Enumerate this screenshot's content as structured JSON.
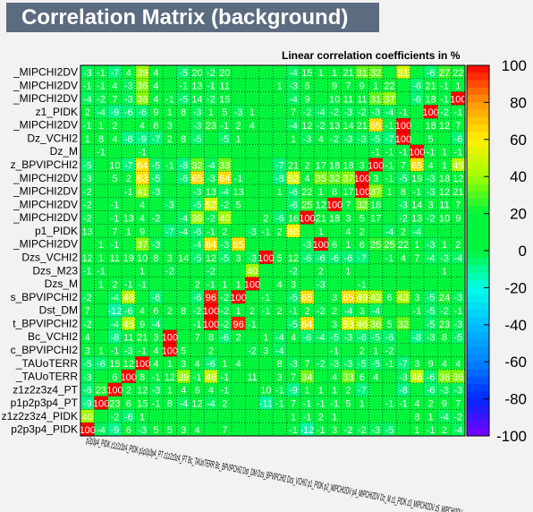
{
  "chart_data": {
    "type": "heatmap",
    "title": "Correlation Matrix (background)",
    "subtitle": "Linear correlation coefficients in %",
    "zlim": [
      -100,
      100
    ],
    "colorbar_ticks": [
      100,
      80,
      60,
      40,
      20,
      0,
      -20,
      -40,
      -60,
      -80,
      -100
    ],
    "y_labels": [
      "_MIPCHI2DV",
      "_MIPCHI2DV",
      "_MIPCHI2DV",
      "z1_PIDK",
      "_MIPCHI2DV",
      "Dz_VCHI2",
      "Dz_M",
      "z_BPVIPCHI2",
      "_MIPCHI2DV",
      "_MIPCHI2DV",
      "_MIPCHI2DV",
      "_MIPCHI2DV",
      "p1_PIDK",
      "_MIPCHI2DV",
      "Dzs_VCHI2",
      "Dzs_M23",
      "Dzs_M",
      "s_BPVIPCHI2",
      "Dst_DM",
      "t_BPVIPCHI2",
      "Bc_VCHI2",
      "c_BPVIPCHI2",
      "_TAUoTERR",
      "_TAUoTERR",
      "z1z2z3z4_PT",
      "p1p2p3p4_PT",
      "z1z2z3z4_PIDK",
      "p2p3p4_PIDK"
    ],
    "x_labels": [
      "p2p3p4_PIDK",
      "z1z2z3z4_PIDK",
      "p1p2p3p4_PT",
      "z1z2z3z4_PT",
      "Bc_TAUoTERR",
      "Bc_TAUoTERR",
      "Bc_BPVIPCHI2",
      "Bc_VCHI2",
      "Dst_BPVIPCHI2",
      "Dst_DM",
      "Dzs_BPVIPCHI2",
      "Dzs_M",
      "Dzs_M23",
      "Dzs_VCHI2",
      "p1_MIPCHI2DV",
      "p1_PIDK",
      "p2_MIPCHI2DV",
      "p3_MIPCHI2DV",
      "p4_MIPCHI2DV",
      "Dz_BPVIPCHI2",
      "Dz_M",
      "Dz_VCHI2",
      "z1_MIPCHI2DV",
      "z1_PIDK",
      "z2_MIPCHI2DV",
      "z3_MIPCHI2DV",
      "z4_MIPCHI2DV",
      "z5_MIPCHI2DV"
    ],
    "x_tick_text": "p2p3p4_PIDK z1z2z3z4_PIDK p1p2p3p4_PT z1z2z3z4_PT Bc_TAUoTERR Bc_BPVIPCHI2 Dst_DM Dzs_BPVIPCHI2 Dzs_VCHI2 p1_PIDK p2_MIPCHI2DV p4_MIPCHI2DV Dz_M z1_PIDK z3_MIPCHI2DV z5_MIPCHI2DV",
    "rows": [
      [
        -3,
        -1,
        -7,
        4,
        39,
        4,
        0,
        -5,
        20,
        -2,
        20,
        0,
        0,
        0,
        0,
        -4,
        15,
        1,
        1,
        21,
        31,
        32,
        0,
        51,
        0,
        -6,
        27,
        22
      ],
      [
        -1,
        -1,
        4,
        -3,
        36,
        4,
        0,
        -1,
        13,
        -1,
        11,
        0,
        0,
        0,
        1,
        -3,
        6,
        0,
        9,
        7,
        9,
        1,
        22,
        0,
        -6,
        21,
        -1,
        1
      ],
      [
        -4,
        -2,
        7,
        -3,
        36,
        4,
        -1,
        -5,
        14,
        -2,
        15,
        0,
        0,
        0,
        0,
        -4,
        9,
        0,
        10,
        11,
        11,
        31,
        37,
        0,
        -6,
        18,
        -1,
        100
      ],
      [
        2,
        -4,
        -9,
        -6,
        -6,
        9,
        1,
        8,
        -3,
        1,
        5,
        -3,
        1,
        0,
        0,
        7,
        -2,
        -4,
        -2,
        -3,
        -2,
        -3,
        -4,
        -1,
        0,
        100,
        -2,
        -1
      ],
      [
        -1,
        1,
        2,
        0,
        4,
        6,
        3,
        0,
        -3,
        23,
        -1,
        2,
        4,
        0,
        0,
        -4,
        12,
        -2,
        13,
        14,
        21,
        65,
        -1,
        100,
        0,
        18,
        12,
        7
      ],
      [
        1,
        8,
        4,
        -8,
        -9,
        -7,
        2,
        8,
        -5,
        0,
        -5,
        1,
        0,
        0,
        0,
        1,
        -3,
        4,
        -2,
        -3,
        -3,
        -5,
        -7,
        100,
        0,
        5,
        0,
        -6
      ],
      [
        0,
        -1,
        0,
        0,
        -1,
        0,
        0,
        0,
        0,
        0,
        0,
        0,
        0,
        0,
        0,
        0,
        0,
        0,
        0,
        0,
        0,
        -1,
        -1,
        -1,
        100,
        -1,
        1,
        -1
      ],
      [
        -5,
        0,
        10,
        -7,
        64,
        -5,
        -1,
        -8,
        32,
        -4,
        33,
        0,
        0,
        0,
        -7,
        21,
        2,
        17,
        18,
        18,
        3,
        100,
        -1,
        7,
        65,
        4,
        1,
        45
      ],
      [
        -3,
        0,
        5,
        2,
        63,
        -5,
        0,
        -6,
        65,
        -3,
        64,
        -1,
        0,
        0,
        -8,
        52,
        4,
        35,
        32,
        37,
        100,
        3,
        -1,
        -5,
        19,
        -3,
        18,
        12
      ],
      [
        -2,
        0,
        0,
        -1,
        41,
        -3,
        0,
        0,
        -3,
        13,
        -4,
        13,
        0,
        0,
        1,
        -6,
        22,
        1,
        8,
        17,
        100,
        37,
        1,
        8,
        -1,
        -3,
        12,
        21
      ],
      [
        -2,
        0,
        -1,
        0,
        4,
        0,
        -3,
        0,
        -5,
        52,
        -2,
        5,
        0,
        0,
        0,
        -6,
        25,
        12,
        100,
        7,
        32,
        18,
        0,
        -3,
        14,
        3,
        11,
        7
      ],
      [
        -2,
        0,
        -1,
        13,
        4,
        -2,
        0,
        -4,
        39,
        -2,
        40,
        0,
        0,
        2,
        -6,
        16,
        100,
        21,
        18,
        3,
        5,
        17,
        0,
        -2,
        13,
        -2,
        10,
        9
      ],
      [
        13,
        0,
        7,
        1,
        9,
        0,
        -7,
        -4,
        -6,
        -1,
        2,
        0,
        -3,
        -1,
        2,
        60,
        0,
        1,
        0,
        4,
        2,
        0,
        -4,
        2,
        -4,
        0,
        0,
        0
      ],
      [
        0,
        1,
        -1,
        0,
        37,
        -3,
        0,
        0,
        -4,
        64,
        -3,
        65,
        0,
        0,
        0,
        0,
        -3,
        100,
        6,
        1,
        6,
        25,
        25,
        22,
        1,
        -3,
        1,
        2
      ],
      [
        12,
        1,
        11,
        19,
        10,
        8,
        3,
        14,
        -5,
        12,
        -5,
        3,
        -3,
        100,
        5,
        12,
        -6,
        -6,
        -6,
        -6,
        -7,
        0,
        -1,
        4,
        7,
        -4,
        -3,
        -4
      ],
      [
        -1,
        -1,
        0,
        0,
        1,
        0,
        -2,
        0,
        0,
        -2,
        0,
        0,
        40,
        0,
        0,
        -2,
        0,
        2,
        0,
        1,
        0,
        0,
        0,
        0,
        0,
        0,
        1,
        0
      ],
      [
        0,
        1,
        2,
        -1,
        -1,
        0,
        0,
        0,
        2,
        -1,
        1,
        1,
        100,
        0,
        4,
        3,
        0,
        -3,
        0,
        0,
        -1,
        0,
        0,
        0,
        0,
        0,
        0,
        0
      ],
      [
        -2,
        0,
        -4,
        46,
        0,
        -6,
        0,
        0,
        -6,
        96,
        -2,
        100,
        0,
        -1,
        0,
        -5,
        65,
        0,
        3,
        65,
        49,
        43,
        6,
        43,
        3,
        -5,
        24,
        -3
      ],
      [
        7,
        0,
        -12,
        -6,
        4,
        6,
        2,
        8,
        -2,
        100,
        -2,
        1,
        2,
        -1,
        2,
        -1,
        2,
        -2,
        2,
        -4,
        3,
        -4,
        0,
        0,
        -1,
        -5,
        -2,
        -1
      ],
      [
        -2,
        0,
        -4,
        45,
        9,
        -4,
        0,
        0,
        -1,
        100,
        -2,
        96,
        -1,
        0,
        0,
        -5,
        64,
        0,
        3,
        53,
        46,
        36,
        5,
        32,
        0,
        -5,
        23,
        -3
      ],
      [
        4,
        0,
        -8,
        11,
        21,
        3,
        100,
        0,
        7,
        8,
        -6,
        2,
        0,
        1,
        -4,
        4,
        -6,
        -4,
        -5,
        -3,
        -6,
        -5,
        -6,
        0,
        -8,
        -3,
        8,
        -5
      ],
      [
        3,
        1,
        -1,
        -3,
        -1,
        4,
        100,
        5,
        0,
        2,
        0,
        0,
        -2,
        3,
        -4,
        0,
        0,
        0,
        -1,
        0,
        2,
        1,
        -2,
        0,
        0,
        0,
        0,
        0
      ],
      [
        -5,
        -6,
        15,
        12,
        100,
        4,
        1,
        3,
        4,
        -6,
        1,
        4,
        0,
        0,
        8,
        -3,
        7,
        -2,
        -3,
        -3,
        -5,
        -5,
        -1,
        -7,
        3,
        9,
        4,
        4
      ],
      [
        -3,
        0,
        6,
        100,
        8,
        -1,
        12,
        39,
        -1,
        46,
        -1,
        0,
        11,
        0,
        3,
        7,
        34,
        0,
        4,
        33,
        6,
        4,
        0,
        -3,
        46,
        -6,
        36,
        36
      ],
      [
        -6,
        23,
        100,
        2,
        12,
        -3,
        1,
        4,
        6,
        4,
        -1,
        0,
        0,
        10,
        -1,
        -9,
        1,
        1,
        1,
        2,
        -7,
        0,
        0,
        -8,
        0,
        -6,
        -3,
        -3
      ],
      [
        -9,
        100,
        23,
        6,
        15,
        -1,
        8,
        -4,
        12,
        -4,
        2,
        0,
        0,
        -11,
        -1,
        7,
        -1,
        -1,
        -1,
        5,
        1,
        0,
        -1,
        -1,
        4,
        2,
        9,
        7
      ],
      [
        40,
        0,
        -2,
        -6,
        1,
        0,
        0,
        0,
        0,
        0,
        0,
        0,
        0,
        0,
        0,
        1,
        -1,
        2,
        1,
        0,
        0,
        0,
        0,
        0,
        8,
        1,
        -4,
        -2
      ],
      [
        100,
        -4,
        -9,
        6,
        -3,
        5,
        5,
        3,
        4,
        0,
        7,
        0,
        0,
        0,
        0,
        -1,
        -12,
        -1,
        3,
        -2,
        -2,
        -3,
        -5,
        0,
        1,
        -1,
        2,
        -4
      ]
    ]
  }
}
